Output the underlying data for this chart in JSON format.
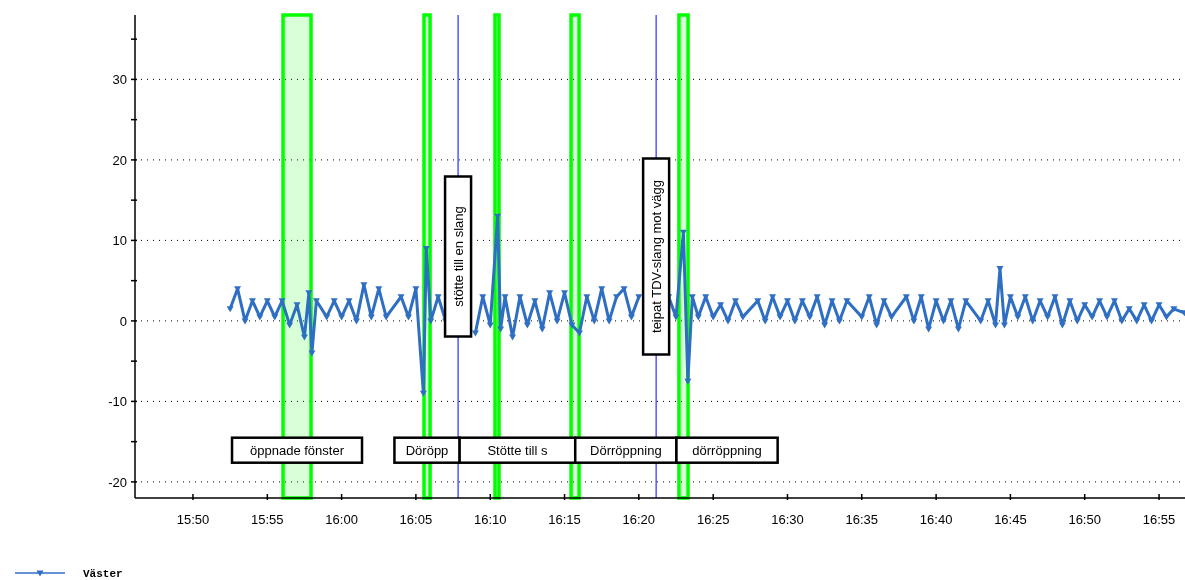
{
  "chart_data": {
    "type": "line",
    "xlim": [
      15.7683,
      16.9458
    ],
    "ylim": [
      -22,
      38
    ],
    "xticks": [
      {
        "value": 15.8333,
        "label": "15:50"
      },
      {
        "value": 15.9167,
        "label": "15:55"
      },
      {
        "value": 16,
        "label": "16:00"
      },
      {
        "value": 16.0833,
        "label": "16:05"
      },
      {
        "value": 16.1667,
        "label": "16:10"
      },
      {
        "value": 16.25,
        "label": "16:15"
      },
      {
        "value": 16.3333,
        "label": "16:20"
      },
      {
        "value": 16.4167,
        "label": "16:25"
      },
      {
        "value": 16.5,
        "label": "16:30"
      },
      {
        "value": 16.5833,
        "label": "16:35"
      },
      {
        "value": 16.6667,
        "label": "16:40"
      },
      {
        "value": 16.75,
        "label": "16:45"
      },
      {
        "value": 16.8333,
        "label": "16:50"
      },
      {
        "value": 16.9167,
        "label": "16:55"
      }
    ],
    "yticks": [
      {
        "value": -20,
        "label": "-20"
      },
      {
        "value": -15,
        "label": null
      },
      {
        "value": -10,
        "label": "-10"
      },
      {
        "value": -5,
        "label": null
      },
      0,
      {
        "value": 5,
        "label": null
      },
      10,
      {
        "value": 15,
        "label": null
      },
      20,
      {
        "value": 25,
        "label": null
      },
      30,
      {
        "value": 35,
        "label": null
      }
    ],
    "grid": "y",
    "legend": "bottom left",
    "marker": "triangle",
    "line_style": "solid",
    "series": [
      {
        "name": "Väster",
        "color": "#2f6fc3",
        "x": [
          15.875,
          15.8833,
          15.8917,
          15.9,
          15.9083,
          15.9167,
          15.925,
          15.9333,
          15.9417,
          15.95,
          15.9583,
          15.9633,
          15.9667,
          15.9717,
          15.9833,
          15.9917,
          16,
          16.0083,
          16.0167,
          16.025,
          16.0333,
          16.0417,
          16.05,
          16.0667,
          16.075,
          16.0833,
          16.0917,
          16.095,
          16.1,
          16.1083,
          16.1167,
          16.125,
          16.1333,
          16.1417,
          16.15,
          16.1583,
          16.1667,
          16.175,
          16.1783,
          16.1833,
          16.1917,
          16.2,
          16.2083,
          16.2167,
          16.225,
          16.2333,
          16.2417,
          16.25,
          16.2583,
          16.2667,
          16.275,
          16.2833,
          16.2917,
          16.3,
          16.3083,
          16.3167,
          16.325,
          16.3333,
          16.3417,
          16.35,
          16.3583,
          16.3667,
          16.375,
          16.3833,
          16.3883,
          16.3933,
          16.4,
          16.4083,
          16.4167,
          16.425,
          16.4333,
          16.4417,
          16.45,
          16.4667,
          16.475,
          16.4833,
          16.4917,
          16.5,
          16.5083,
          16.5167,
          16.525,
          16.5333,
          16.5417,
          16.55,
          16.5583,
          16.5667,
          16.5833,
          16.5917,
          16.6,
          16.6083,
          16.6167,
          16.6333,
          16.6417,
          16.65,
          16.6583,
          16.6667,
          16.675,
          16.6833,
          16.6917,
          16.7,
          16.7167,
          16.725,
          16.7333,
          16.7383,
          16.7433,
          16.75,
          16.7583,
          16.7667,
          16.775,
          16.7833,
          16.7917,
          16.8,
          16.8083,
          16.8167,
          16.825,
          16.8333,
          16.8417,
          16.85,
          16.8583,
          16.8667,
          16.875,
          16.8833,
          16.8917,
          16.9,
          16.9083,
          16.9167,
          16.925,
          16.9333,
          16.945
        ],
        "values": [
          1.5,
          4,
          0,
          2.5,
          0.5,
          2.5,
          0.5,
          2.5,
          -0.5,
          2,
          -2,
          3.5,
          -4,
          2.5,
          0.5,
          2.5,
          0.5,
          2.5,
          0,
          4.5,
          0.5,
          4,
          0.5,
          3,
          0.5,
          4,
          -9,
          9,
          0,
          3,
          0,
          null,
          null,
          null,
          -1.5,
          3,
          -0.5,
          13,
          -1,
          3,
          -2,
          3,
          -0.5,
          2.5,
          -1,
          3.5,
          0,
          3.5,
          -0.5,
          -1.5,
          3,
          0,
          4,
          0,
          3,
          4,
          0.5,
          3,
          null,
          null,
          null,
          3,
          0.5,
          11,
          -7.5,
          3,
          0.5,
          3,
          0.5,
          2,
          0,
          2.5,
          0.5,
          2.5,
          0,
          3,
          0.5,
          2.5,
          0,
          2.5,
          0.5,
          3,
          -0.5,
          2.5,
          0,
          2.5,
          0.5,
          3,
          -0.5,
          2.5,
          0.5,
          3,
          0,
          3,
          -1,
          2.5,
          0,
          2.5,
          -1,
          2.5,
          0,
          2.5,
          -0.5,
          6.5,
          -0.5,
          3,
          0.5,
          3,
          0,
          2.5,
          0.5,
          3,
          -0.5,
          2.5,
          0,
          2,
          0.5,
          2.5,
          0.5,
          2.5,
          0,
          1.5,
          0,
          2,
          0,
          2,
          0.5,
          1.5,
          1
        ]
      }
    ],
    "ref_lines": [
      {
        "axis": "x",
        "value": 16.1306,
        "label": "stötte till en slang",
        "color": "#0000ff"
      },
      {
        "axis": "x",
        "value": 16.3527,
        "label": "teipat TDV-slang mot vägg",
        "color": "#0000ff"
      }
    ],
    "bands": [
      {
        "axis": "x",
        "from": 15.9343,
        "to": 15.9657,
        "label": "öppnade fönster",
        "color": "#00ff00"
      },
      {
        "axis": "x",
        "from": 16.0924,
        "to": 16.0992,
        "label": "Döröpp",
        "color": "#00ff00"
      },
      {
        "axis": "x",
        "from": 16.172,
        "to": 16.1765,
        "label": "Stötte till s",
        "color": "#00ff00"
      },
      {
        "axis": "x",
        "from": 16.2573,
        "to": 16.2663,
        "label": "Dörröppning",
        "color": "#00ff00"
      },
      {
        "axis": "x",
        "from": 16.3783,
        "to": 16.3885,
        "label": "dörröppning",
        "color": "#00ff00"
      }
    ]
  }
}
